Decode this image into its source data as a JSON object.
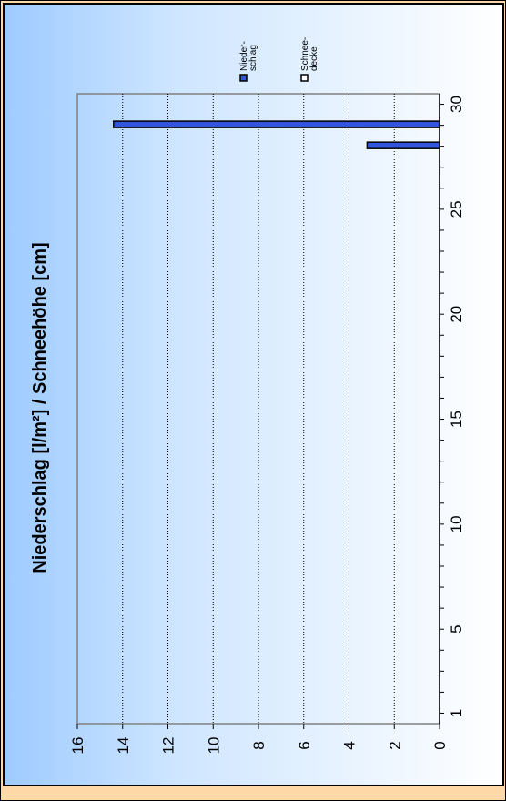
{
  "chart_data": {
    "type": "bar",
    "orientation": "rotated 90 degrees",
    "title": "Niederschlag [l/m²] / Schneehöhe [cm]",
    "x_ticks": [
      "1",
      "5",
      "10",
      "15",
      "20",
      "25",
      "30"
    ],
    "y_ticks": [
      "0",
      "2",
      "4",
      "6",
      "8",
      "10",
      "12",
      "14",
      "16"
    ],
    "xlim": [
      0.5,
      30.5
    ],
    "ylim": [
      0,
      16
    ],
    "grid": "horizontal dotted gridlines at each y tick",
    "legend_placement": "top-right",
    "series": [
      {
        "name": "Nieder-\nschlag",
        "color": "#3355dd",
        "points": [
          {
            "x": 28,
            "y": 3.2
          },
          {
            "x": 29,
            "y": 14.4
          }
        ]
      },
      {
        "name": "Schnee-\ndecke",
        "color": "#ffffff",
        "points": []
      }
    ]
  }
}
